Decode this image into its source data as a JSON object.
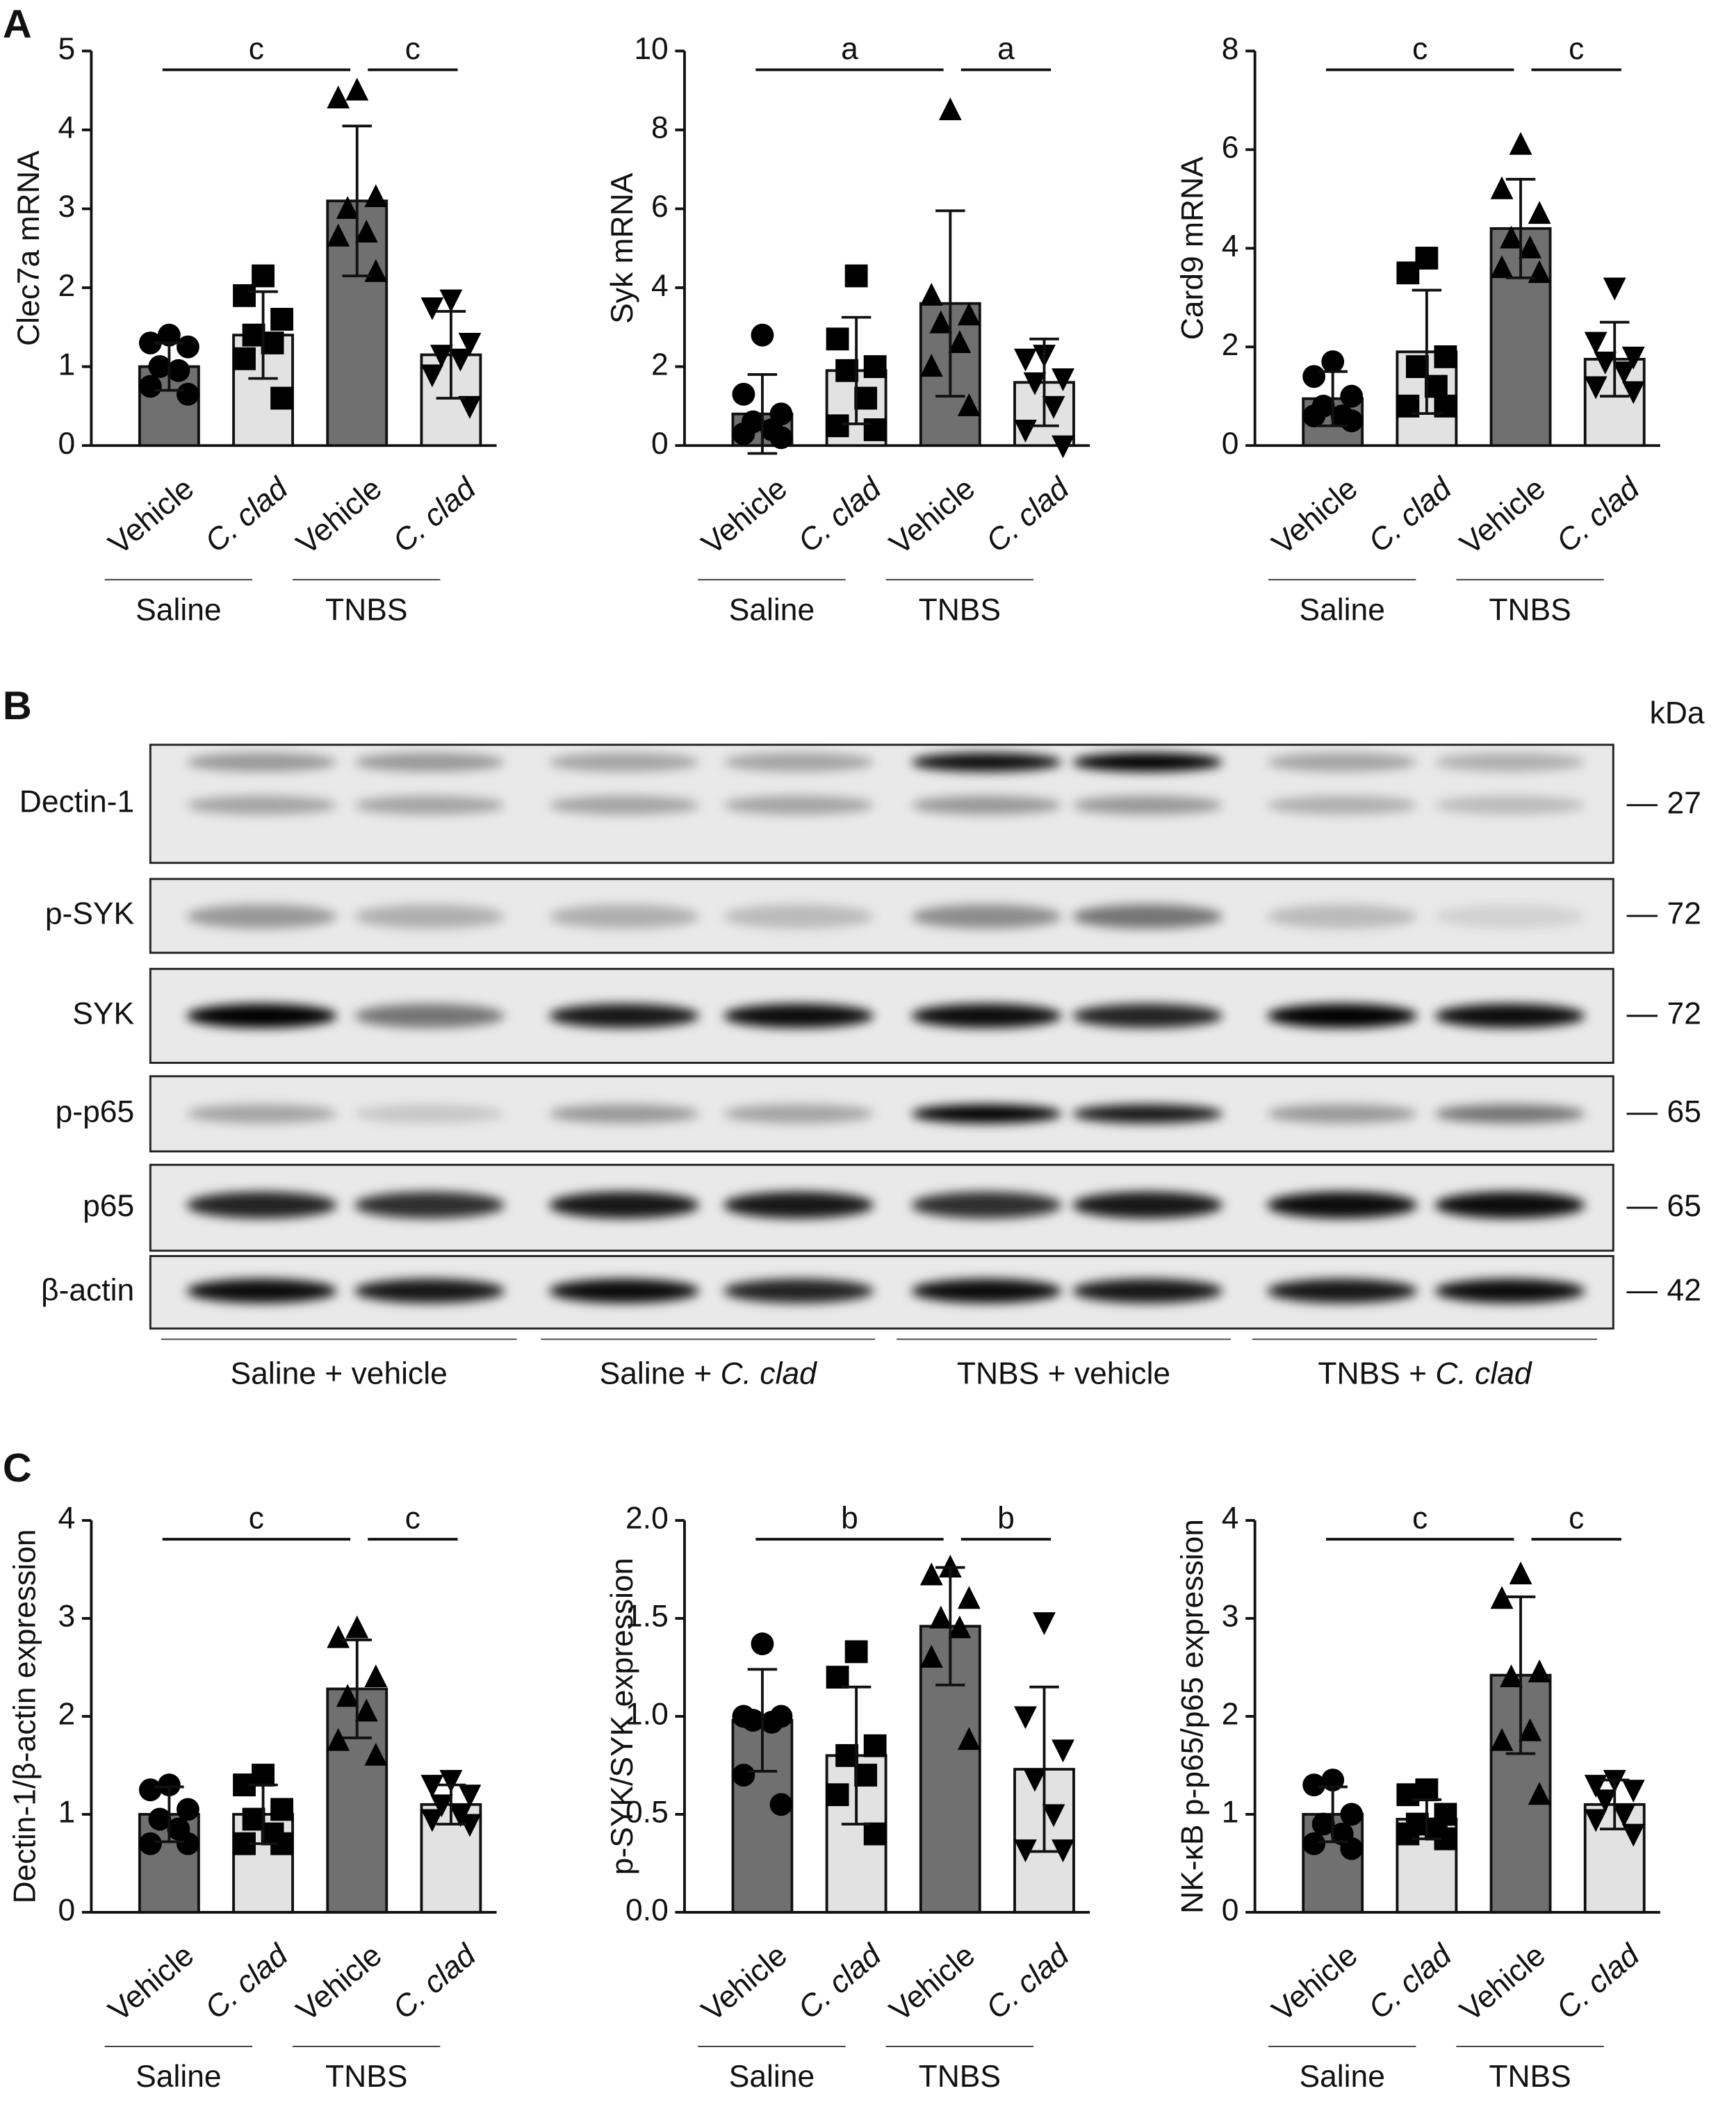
{
  "panels": [
    "A",
    "B",
    "C"
  ],
  "chart_data": [
    {
      "type": "bar",
      "ylabel": "Clec7a mRNA",
      "categories": [
        "Vehicle",
        "C. clad",
        "Vehicle",
        "C. clad"
      ],
      "groups": [
        "Saline",
        "TNBS"
      ],
      "ylim": [
        0,
        5
      ],
      "yticks": [
        0,
        1,
        2,
        3,
        4,
        5
      ],
      "values": [
        1.0,
        1.4,
        3.1,
        1.15
      ],
      "errors": [
        0.3,
        0.55,
        0.95,
        0.55
      ],
      "points": [
        [
          1.4,
          1.3,
          1.25,
          1.0,
          0.95,
          0.75,
          0.65
        ],
        [
          2.15,
          1.9,
          1.6,
          1.4,
          1.3,
          1.1,
          0.6
        ],
        [
          4.5,
          4.4,
          3.15,
          3.0,
          2.7,
          2.65,
          2.2
        ],
        [
          1.85,
          1.75,
          1.3,
          1.15,
          1.1,
          0.9,
          0.5
        ]
      ],
      "colors": [
        "#707070",
        "#e2e2e2",
        "#707070",
        "#e2e2e2"
      ],
      "markers": [
        "circle",
        "square",
        "triangle-up",
        "triangle-down"
      ],
      "sig": [
        {
          "from": 0,
          "to": 2,
          "label": "c"
        },
        {
          "from": 2,
          "to": 3,
          "label": "c"
        }
      ]
    },
    {
      "type": "bar",
      "ylabel": "Syk mRNA",
      "categories": [
        "Vehicle",
        "C. clad",
        "Vehicle",
        "C. clad"
      ],
      "groups": [
        "Saline",
        "TNBS"
      ],
      "ylim": [
        0,
        10
      ],
      "yticks": [
        0,
        2,
        4,
        6,
        8,
        10
      ],
      "values": [
        0.8,
        1.9,
        3.6,
        1.6
      ],
      "errors": [
        1.0,
        1.35,
        2.35,
        1.1
      ],
      "points": [
        [
          2.8,
          1.3,
          0.8,
          0.6,
          0.4,
          0.3,
          0.2
        ],
        [
          4.3,
          2.7,
          2.0,
          1.9,
          1.2,
          0.5,
          0.4
        ],
        [
          8.5,
          3.8,
          3.3,
          3.1,
          2.6,
          2.0,
          1.0
        ],
        [
          2.3,
          2.2,
          1.7,
          1.6,
          1.0,
          0.4,
          0.0
        ]
      ],
      "colors": [
        "#707070",
        "#e2e2e2",
        "#707070",
        "#e2e2e2"
      ],
      "markers": [
        "circle",
        "square",
        "triangle-up",
        "triangle-down"
      ],
      "sig": [
        {
          "from": 0,
          "to": 2,
          "label": "a"
        },
        {
          "from": 2,
          "to": 3,
          "label": "a"
        }
      ]
    },
    {
      "type": "bar",
      "ylabel": "Card9 mRNA",
      "categories": [
        "Vehicle",
        "C. clad",
        "Vehicle",
        "C. clad"
      ],
      "groups": [
        "Saline",
        "TNBS"
      ],
      "ylim": [
        0,
        8
      ],
      "yticks": [
        0,
        2,
        4,
        6,
        8
      ],
      "values": [
        0.95,
        1.9,
        4.4,
        1.75
      ],
      "errors": [
        0.55,
        1.25,
        1.0,
        0.75
      ],
      "points": [
        [
          1.7,
          1.4,
          1.0,
          0.8,
          0.6,
          0.6,
          0.5
        ],
        [
          3.8,
          3.5,
          1.8,
          1.6,
          1.2,
          0.8,
          0.8
        ],
        [
          6.1,
          5.2,
          4.7,
          4.2,
          4.0,
          3.6,
          3.5
        ],
        [
          3.2,
          2.1,
          1.8,
          1.7,
          1.5,
          1.2,
          1.1
        ]
      ],
      "colors": [
        "#707070",
        "#e2e2e2",
        "#707070",
        "#e2e2e2"
      ],
      "markers": [
        "circle",
        "square",
        "triangle-up",
        "triangle-down"
      ],
      "sig": [
        {
          "from": 0,
          "to": 2,
          "label": "c"
        },
        {
          "from": 2,
          "to": 3,
          "label": "c"
        }
      ]
    },
    {
      "type": "bar",
      "ylabel": "Dectin-1/β-actin expression",
      "categories": [
        "Vehicle",
        "C. clad",
        "Vehicle",
        "C. clad"
      ],
      "groups": [
        "Saline",
        "TNBS"
      ],
      "ylim": [
        0,
        4
      ],
      "yticks": [
        0,
        1,
        2,
        3,
        4
      ],
      "values": [
        1.0,
        1.0,
        2.28,
        1.1
      ],
      "errors": [
        0.28,
        0.3,
        0.5,
        0.2
      ],
      "points": [
        [
          1.3,
          1.25,
          1.05,
          0.95,
          0.85,
          0.7,
          0.7
        ],
        [
          1.4,
          1.3,
          1.05,
          0.95,
          0.8,
          0.7,
          0.7
        ],
        [
          2.9,
          2.8,
          2.4,
          2.2,
          2.05,
          1.75,
          1.6
        ],
        [
          1.35,
          1.3,
          1.2,
          1.1,
          1.0,
          0.95,
          0.9
        ]
      ],
      "colors": [
        "#707070",
        "#e2e2e2",
        "#707070",
        "#e2e2e2"
      ],
      "markers": [
        "circle",
        "square",
        "triangle-up",
        "triangle-down"
      ],
      "sig": [
        {
          "from": 0,
          "to": 2,
          "label": "c"
        },
        {
          "from": 2,
          "to": 3,
          "label": "c"
        }
      ]
    },
    {
      "type": "bar",
      "ylabel": "p-SYK/SYK expression",
      "categories": [
        "Vehicle",
        "C. clad",
        "Vehicle",
        "C. clad"
      ],
      "groups": [
        "Saline",
        "TNBS"
      ],
      "ylim": [
        0,
        2
      ],
      "yticks": [
        {
          "value": 0,
          "label": "0.0"
        },
        {
          "value": 0.5,
          "label": "0.5"
        },
        {
          "value": 1,
          "label": "1.0"
        },
        {
          "value": 1.5,
          "label": "1.5"
        },
        {
          "value": 2,
          "label": "2.0"
        }
      ],
      "values": [
        0.98,
        0.8,
        1.46,
        0.73
      ],
      "errors": [
        0.26,
        0.35,
        0.3,
        0.42
      ],
      "points": [
        [
          1.37,
          1.0,
          1.0,
          0.98,
          0.97,
          0.7,
          0.55
        ],
        [
          1.33,
          1.2,
          0.85,
          0.8,
          0.7,
          0.6,
          0.4
        ],
        [
          1.76,
          1.72,
          1.6,
          1.5,
          1.45,
          1.3,
          0.88
        ],
        [
          1.48,
          1.0,
          0.83,
          0.68,
          0.5,
          0.32,
          0.32
        ]
      ],
      "colors": [
        "#707070",
        "#e2e2e2",
        "#707070",
        "#e2e2e2"
      ],
      "markers": [
        "circle",
        "square",
        "triangle-up",
        "triangle-down"
      ],
      "sig": [
        {
          "from": 0,
          "to": 2,
          "label": "b"
        },
        {
          "from": 2,
          "to": 3,
          "label": "b"
        }
      ]
    },
    {
      "type": "bar",
      "ylabel": "NK-κB p-p65/p65 expression",
      "categories": [
        "Vehicle",
        "C. clad",
        "Vehicle",
        "C. clad"
      ],
      "groups": [
        "Saline",
        "TNBS"
      ],
      "ylim": [
        0,
        4
      ],
      "yticks": [
        0,
        1,
        2,
        3,
        4
      ],
      "values": [
        1.0,
        0.95,
        2.42,
        1.1
      ],
      "errors": [
        0.28,
        0.2,
        0.8,
        0.25
      ],
      "points": [
        [
          1.35,
          1.3,
          1.0,
          0.9,
          0.8,
          0.7,
          0.65
        ],
        [
          1.25,
          1.2,
          1.0,
          0.9,
          0.85,
          0.8,
          0.75
        ],
        [
          3.45,
          3.2,
          2.45,
          2.4,
          1.85,
          1.75,
          1.2
        ],
        [
          1.35,
          1.3,
          1.25,
          1.15,
          1.0,
          0.95,
          0.8
        ]
      ],
      "colors": [
        "#707070",
        "#e2e2e2",
        "#707070",
        "#e2e2e2"
      ],
      "markers": [
        "circle",
        "square",
        "triangle-up",
        "triangle-down"
      ],
      "sig": [
        {
          "from": 0,
          "to": 2,
          "label": "c"
        },
        {
          "from": 2,
          "to": 3,
          "label": "c"
        }
      ]
    }
  ],
  "blot": {
    "unit": "kDa",
    "rows": [
      {
        "name": "Dectin-1",
        "kda": 27
      },
      {
        "name": "p-SYK",
        "kda": 72
      },
      {
        "name": "SYK",
        "kda": 72
      },
      {
        "name": "p-p65",
        "kda": 65
      },
      {
        "name": "p65",
        "kda": 65
      },
      {
        "name": "β-actin",
        "kda": 42
      }
    ],
    "groups": [
      [
        "Saline + vehicle"
      ],
      [
        "Saline + ",
        "C. clad"
      ],
      [
        "TNBS + vehicle"
      ],
      [
        "TNBS + ",
        "C. clad"
      ]
    ]
  }
}
